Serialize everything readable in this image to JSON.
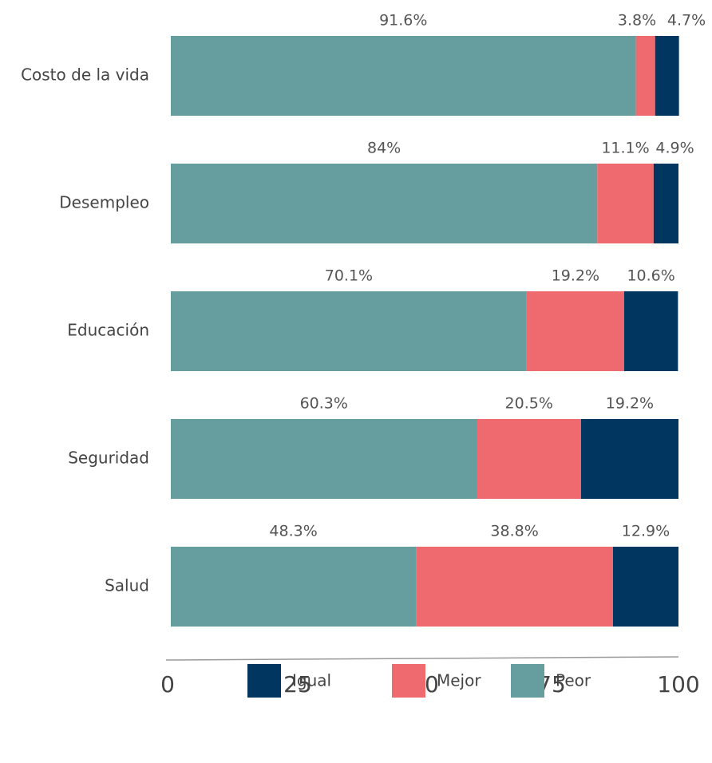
{
  "chart_data": {
    "type": "stacked-barh",
    "categories": [
      "Costo de la vida",
      "Desempleo",
      "Educación",
      "Seguridad",
      "Salud"
    ],
    "series": [
      {
        "name": "Peor",
        "color": "#669e9f",
        "values": [
          91.6,
          84,
          70.1,
          60.3,
          48.3
        ],
        "value_labels": [
          "91.6%",
          "84%",
          "70.1%",
          "60.3%",
          "48.3%"
        ]
      },
      {
        "name": "Mejor",
        "color": "#ee6a6e",
        "values": [
          3.8,
          11.1,
          19.2,
          20.5,
          38.8
        ],
        "value_labels": [
          "3.8%",
          "11.1%",
          "19.2%",
          "20.5%",
          "38.8%"
        ]
      },
      {
        "name": "Igual",
        "color": "#003660",
        "values": [
          4.7,
          4.9,
          10.6,
          19.2,
          12.9
        ],
        "value_labels": [
          "4.7%",
          "4.9%",
          "10.6%",
          "19.2%",
          "12.9%"
        ]
      }
    ],
    "xlim": [
      0,
      100
    ],
    "xticks": [
      0,
      25,
      50,
      75,
      100
    ]
  }
}
